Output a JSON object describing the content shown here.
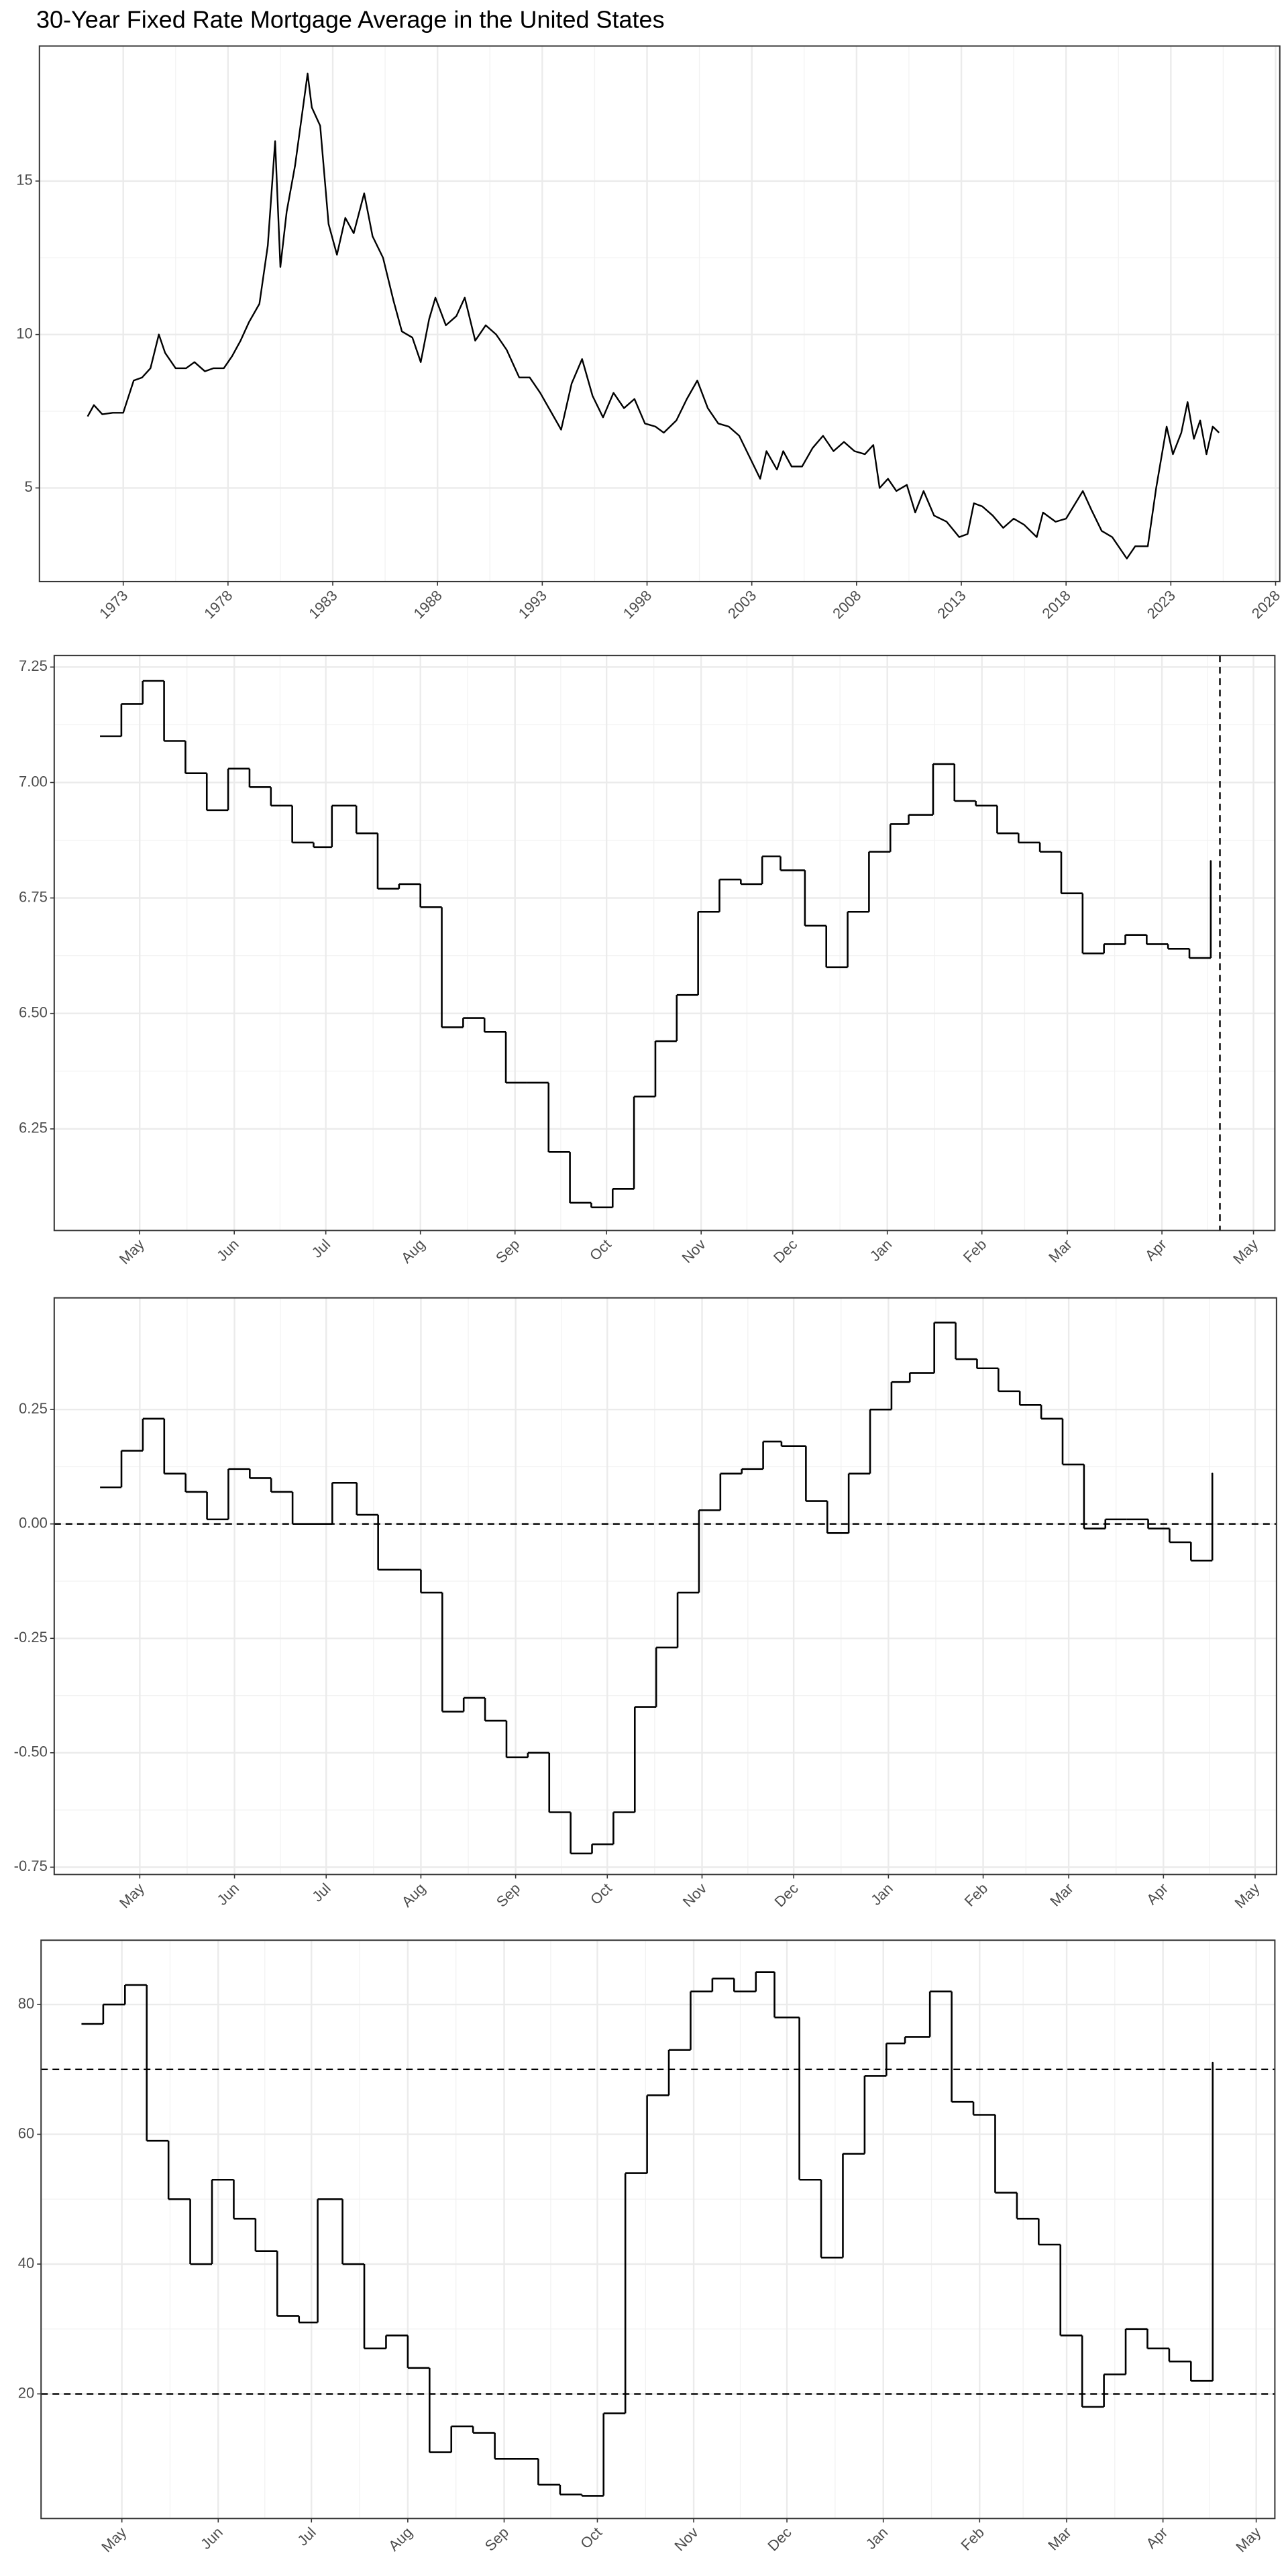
{
  "chart_data": [
    {
      "type": "line",
      "title": "30-Year Fixed Rate Mortgage Average in the United States",
      "x": [
        1971.3,
        1971.6,
        1972.0,
        1972.5,
        1973.0,
        1973.5,
        1973.9,
        1974.3,
        1974.7,
        1975.0,
        1975.5,
        1976.0,
        1976.4,
        1976.9,
        1977.3,
        1977.8,
        1978.2,
        1978.6,
        1979.0,
        1979.5,
        1979.9,
        1980.25,
        1980.5,
        1980.8,
        1981.2,
        1981.6,
        1981.8,
        1982.0,
        1982.4,
        1982.8,
        1983.2,
        1983.6,
        1984.0,
        1984.5,
        1984.9,
        1985.4,
        1985.9,
        1986.3,
        1986.8,
        1987.2,
        1987.6,
        1987.9,
        1988.4,
        1988.9,
        1989.3,
        1989.8,
        1990.3,
        1990.8,
        1991.3,
        1991.9,
        1992.4,
        1992.9,
        1993.4,
        1993.9,
        1994.4,
        1994.9,
        1995.4,
        1995.9,
        1996.4,
        1996.9,
        1997.4,
        1997.9,
        1998.4,
        1998.8,
        1999.4,
        1999.9,
        2000.4,
        2000.9,
        2001.4,
        2001.9,
        2002.4,
        2002.9,
        2003.4,
        2003.7,
        2004.2,
        2004.5,
        2004.9,
        2005.4,
        2005.9,
        2006.4,
        2006.9,
        2007.4,
        2007.9,
        2008.4,
        2008.8,
        2009.1,
        2009.5,
        2009.9,
        2010.4,
        2010.8,
        2011.2,
        2011.7,
        2012.3,
        2012.9,
        2013.3,
        2013.6,
        2014.0,
        2014.5,
        2015.0,
        2015.5,
        2016.0,
        2016.6,
        2016.9,
        2017.5,
        2018.0,
        2018.8,
        2019.2,
        2019.7,
        2020.2,
        2020.9,
        2021.3,
        2021.9,
        2022.3,
        2022.8,
        2023.1,
        2023.5,
        2023.8,
        2024.1,
        2024.4,
        2024.7,
        2025.0,
        2025.3
      ],
      "values": [
        7.33,
        7.7,
        7.4,
        7.45,
        7.45,
        8.5,
        8.6,
        8.9,
        10.0,
        9.4,
        8.9,
        8.9,
        9.1,
        8.8,
        8.9,
        8.9,
        9.3,
        9.8,
        10.4,
        11.0,
        12.9,
        16.3,
        12.2,
        14.0,
        15.5,
        17.5,
        18.5,
        17.4,
        16.8,
        13.6,
        12.6,
        13.8,
        13.3,
        14.6,
        13.2,
        12.5,
        11.1,
        10.1,
        9.9,
        9.1,
        10.5,
        11.2,
        10.3,
        10.6,
        11.2,
        9.8,
        10.3,
        10.0,
        9.5,
        8.6,
        8.6,
        8.1,
        7.5,
        6.9,
        8.4,
        9.2,
        8.0,
        7.3,
        8.1,
        7.6,
        7.9,
        7.1,
        7.0,
        6.8,
        7.2,
        7.9,
        8.5,
        7.6,
        7.1,
        7.0,
        6.7,
        6.0,
        5.3,
        6.2,
        5.6,
        6.2,
        5.7,
        5.7,
        6.3,
        6.7,
        6.2,
        6.5,
        6.2,
        6.1,
        6.4,
        5.0,
        5.3,
        4.9,
        5.1,
        4.2,
        4.9,
        4.1,
        3.9,
        3.4,
        3.5,
        4.5,
        4.4,
        4.1,
        3.7,
        4.0,
        3.8,
        3.4,
        4.2,
        3.9,
        4.0,
        4.9,
        4.3,
        3.6,
        3.4,
        2.7,
        3.1,
        3.1,
        5.0,
        7.0,
        6.1,
        6.8,
        7.8,
        6.6,
        7.2,
        6.1,
        7.0,
        6.8
      ],
      "color": "#000000",
      "xlim": [
        1969.0,
        2028.2
      ],
      "xticks": [
        1973,
        1978,
        1983,
        1988,
        1993,
        1998,
        2003,
        2008,
        2013,
        2018,
        2023,
        2028
      ],
      "ylim": [
        1.95,
        19.4
      ],
      "yticks": [
        5,
        10,
        15
      ],
      "grid": true
    },
    {
      "type": "line",
      "step": true,
      "x": [
        17,
        24,
        31,
        38,
        45,
        52,
        59,
        66,
        73,
        80,
        87,
        93,
        101,
        108,
        115,
        122,
        129,
        136,
        143,
        150,
        157,
        164,
        171,
        178,
        185,
        192,
        199,
        206,
        213,
        220,
        227,
        234,
        240,
        248,
        255,
        262,
        269,
        276,
        282,
        290,
        297,
        304,
        311,
        318,
        325,
        332,
        339,
        346,
        353,
        360,
        367,
        374,
        381
      ],
      "values": [
        7.1,
        7.17,
        7.22,
        7.09,
        7.02,
        6.94,
        7.03,
        6.99,
        6.95,
        6.87,
        6.86,
        6.95,
        6.89,
        6.77,
        6.78,
        6.73,
        6.47,
        6.49,
        6.46,
        6.35,
        6.35,
        6.2,
        6.09,
        6.08,
        6.12,
        6.32,
        6.44,
        6.54,
        6.72,
        6.79,
        6.78,
        6.84,
        6.81,
        6.69,
        6.6,
        6.72,
        6.85,
        6.91,
        6.93,
        7.04,
        6.96,
        6.95,
        6.89,
        6.87,
        6.85,
        6.76,
        6.63,
        6.65,
        6.67,
        6.65,
        6.64,
        6.62,
        6.83
      ],
      "color": "#000000",
      "xlim": [
        2,
        402
      ],
      "xticks": [
        {
          "value": 30,
          "label": "May"
        },
        {
          "value": 61,
          "label": "Jun"
        },
        {
          "value": 91,
          "label": "Jul"
        },
        {
          "value": 122,
          "label": "Aug"
        },
        {
          "value": 153,
          "label": "Sep"
        },
        {
          "value": 183,
          "label": "Oct"
        },
        {
          "value": 214,
          "label": "Nov"
        },
        {
          "value": 244,
          "label": "Dec"
        },
        {
          "value": 275,
          "label": "Jan"
        },
        {
          "value": 306,
          "label": "Feb"
        },
        {
          "value": 334,
          "label": "Mar"
        },
        {
          "value": 365,
          "label": "Apr"
        },
        {
          "value": 395,
          "label": "May"
        }
      ],
      "ylim": [
        6.03,
        7.275
      ],
      "yticks": [
        6.25,
        {
          "value": 6.5,
          "label": "6.50"
        },
        6.75,
        {
          "value": 7,
          "label": "7.00"
        },
        7.25
      ],
      "vlines": [
        384
      ],
      "grid": true
    },
    {
      "type": "line",
      "step": true,
      "x": [
        17,
        24,
        31,
        38,
        45,
        52,
        59,
        66,
        73,
        80,
        87,
        93,
        101,
        108,
        115,
        122,
        129,
        136,
        143,
        150,
        157,
        164,
        171,
        178,
        185,
        192,
        199,
        206,
        213,
        220,
        227,
        234,
        240,
        248,
        255,
        262,
        269,
        276,
        282,
        290,
        297,
        304,
        311,
        318,
        325,
        332,
        339,
        346,
        353,
        360,
        367,
        374,
        381
      ],
      "values": [
        0.08,
        0.16,
        0.23,
        0.11,
        0.07,
        0.01,
        0.12,
        0.1,
        0.07,
        0.0,
        0.0,
        0.09,
        0.02,
        -0.1,
        -0.1,
        -0.15,
        -0.41,
        -0.38,
        -0.43,
        -0.51,
        -0.5,
        -0.63,
        -0.72,
        -0.7,
        -0.63,
        -0.4,
        -0.27,
        -0.15,
        0.03,
        0.11,
        0.12,
        0.18,
        0.17,
        0.05,
        -0.02,
        0.11,
        0.25,
        0.31,
        0.33,
        0.44,
        0.36,
        0.34,
        0.29,
        0.26,
        0.23,
        0.13,
        -0.01,
        0.01,
        0.01,
        -0.01,
        -0.04,
        -0.08,
        0.11
      ],
      "color": "#000000",
      "xlim": [
        2,
        402
      ],
      "xticks": [
        {
          "value": 30,
          "label": "May"
        },
        {
          "value": 61,
          "label": "Jun"
        },
        {
          "value": 91,
          "label": "Jul"
        },
        {
          "value": 122,
          "label": "Aug"
        },
        {
          "value": 153,
          "label": "Sep"
        },
        {
          "value": 183,
          "label": "Oct"
        },
        {
          "value": 214,
          "label": "Nov"
        },
        {
          "value": 244,
          "label": "Dec"
        },
        {
          "value": 275,
          "label": "Jan"
        },
        {
          "value": 306,
          "label": "Feb"
        },
        {
          "value": 334,
          "label": "Mar"
        },
        {
          "value": 365,
          "label": "Apr"
        },
        {
          "value": 395,
          "label": "May"
        }
      ],
      "ylim": [
        -0.766,
        0.494
      ],
      "yticks": [
        {
          "value": -0.75,
          "label": "-0.75"
        },
        {
          "value": -0.5,
          "label": "-0.50"
        },
        -0.25,
        {
          "value": 0,
          "label": "0.00"
        },
        0.25
      ],
      "hlines": [
        0
      ],
      "grid": true
    },
    {
      "type": "line",
      "step": true,
      "x": [
        17,
        24,
        31,
        38,
        45,
        52,
        59,
        66,
        73,
        80,
        87,
        93,
        101,
        108,
        115,
        122,
        129,
        136,
        143,
        150,
        157,
        164,
        171,
        178,
        185,
        192,
        199,
        206,
        213,
        220,
        227,
        234,
        240,
        248,
        255,
        262,
        269,
        276,
        282,
        290,
        297,
        304,
        311,
        318,
        325,
        332,
        339,
        346,
        353,
        360,
        367,
        374,
        381
      ],
      "values": [
        77,
        80,
        83,
        59,
        50,
        40,
        53,
        47,
        42,
        32,
        31,
        50,
        40,
        27,
        29,
        24,
        11,
        15,
        14,
        10,
        10,
        6,
        4.5,
        4.3,
        17,
        54,
        66,
        73,
        82,
        84,
        82,
        85,
        78,
        53,
        41,
        57,
        69,
        74,
        75,
        82,
        65,
        63,
        51,
        47,
        43,
        29,
        18,
        23,
        30,
        27,
        25,
        22,
        71
      ],
      "color": "#000000",
      "xlim": [
        4,
        401
      ],
      "xticks": [
        {
          "value": 30,
          "label": "May"
        },
        {
          "value": 61,
          "label": "Jun"
        },
        {
          "value": 91,
          "label": "Jul"
        },
        {
          "value": 122,
          "label": "Aug"
        },
        {
          "value": 153,
          "label": "Sep"
        },
        {
          "value": 183,
          "label": "Oct"
        },
        {
          "value": 214,
          "label": "Nov"
        },
        {
          "value": 244,
          "label": "Dec"
        },
        {
          "value": 275,
          "label": "Jan"
        },
        {
          "value": 306,
          "label": "Feb"
        },
        {
          "value": 334,
          "label": "Mar"
        },
        {
          "value": 365,
          "label": "Apr"
        },
        {
          "value": 395,
          "label": "May"
        }
      ],
      "ylim": [
        0.8,
        89.9
      ],
      "yticks": [
        20,
        40,
        60,
        80
      ],
      "hlines": [
        20,
        70
      ],
      "grid": true
    }
  ]
}
